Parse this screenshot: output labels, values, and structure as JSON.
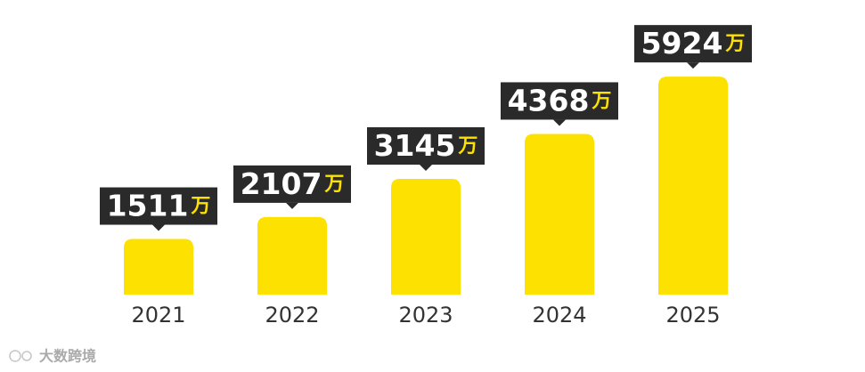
{
  "chart_data": {
    "type": "bar",
    "categories": [
      "2021",
      "2022",
      "2023",
      "2024",
      "2025"
    ],
    "values": [
      1511,
      2107,
      3145,
      4368,
      5924
    ],
    "value_labels": [
      "1511万",
      "2107万",
      "3145万",
      "4368万",
      "5924万"
    ],
    "color": "#fde100",
    "ylim": [
      0,
      6000
    ]
  },
  "watermark": "大数跨境"
}
